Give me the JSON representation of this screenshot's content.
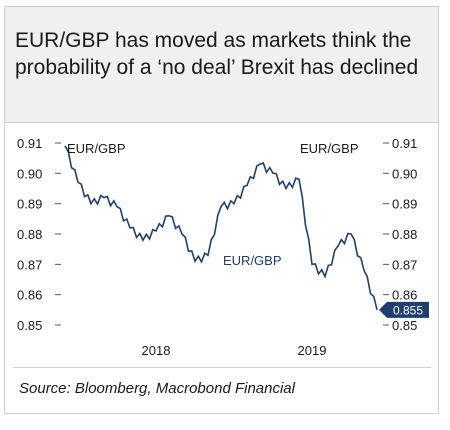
{
  "title": "EUR/GBP has moved as markets think the probability of a ‘no deal’ Brexit has declined",
  "source": "Source: Bloomberg, Macrobond Financial",
  "colors": {
    "line": "#1f3f6e",
    "label_box": "#1f3f6e",
    "text": "#1a1a1a",
    "axis": "#555555"
  },
  "chart_data": {
    "type": "line",
    "title": "",
    "xlabel": "",
    "ylabel": "",
    "x_range": [
      "2017-06",
      "2019-06"
    ],
    "x_tick_labels": [
      "2018",
      "2019"
    ],
    "x_ticks": [
      "2018-01",
      "2019-01"
    ],
    "ylim": [
      0.85,
      0.91
    ],
    "y_ticks": [
      0.85,
      0.86,
      0.87,
      0.88,
      0.89,
      0.9,
      0.91
    ],
    "y_tick_labels": [
      "0.85",
      "0.86",
      "0.87",
      "0.88",
      "0.89",
      "0.90",
      "0.91"
    ],
    "grid": false,
    "left_label": "EUR/GBP",
    "right_label": "EUR/GBP",
    "series": [
      {
        "name": "EUR/GBP",
        "label": "EUR/GBP",
        "last_value_label": "0.855",
        "x": [
          "2017-06",
          "2017-07",
          "2017-08",
          "2017-09",
          "2017-10",
          "2017-11",
          "2017-12",
          "2018-01",
          "2018-02",
          "2018-03",
          "2018-04",
          "2018-05",
          "2018-06",
          "2018-07",
          "2018-08",
          "2018-09",
          "2018-10",
          "2018-11",
          "2018-12",
          "2019-01",
          "2019-02",
          "2019-03",
          "2019-04",
          "2019-05",
          "2019-06"
        ],
        "values": [
          0.909,
          0.897,
          0.89,
          0.892,
          0.889,
          0.882,
          0.878,
          0.881,
          0.886,
          0.88,
          0.871,
          0.873,
          0.889,
          0.89,
          0.896,
          0.903,
          0.9,
          0.895,
          0.898,
          0.87,
          0.866,
          0.876,
          0.88,
          0.868,
          0.855
        ]
      }
    ]
  }
}
